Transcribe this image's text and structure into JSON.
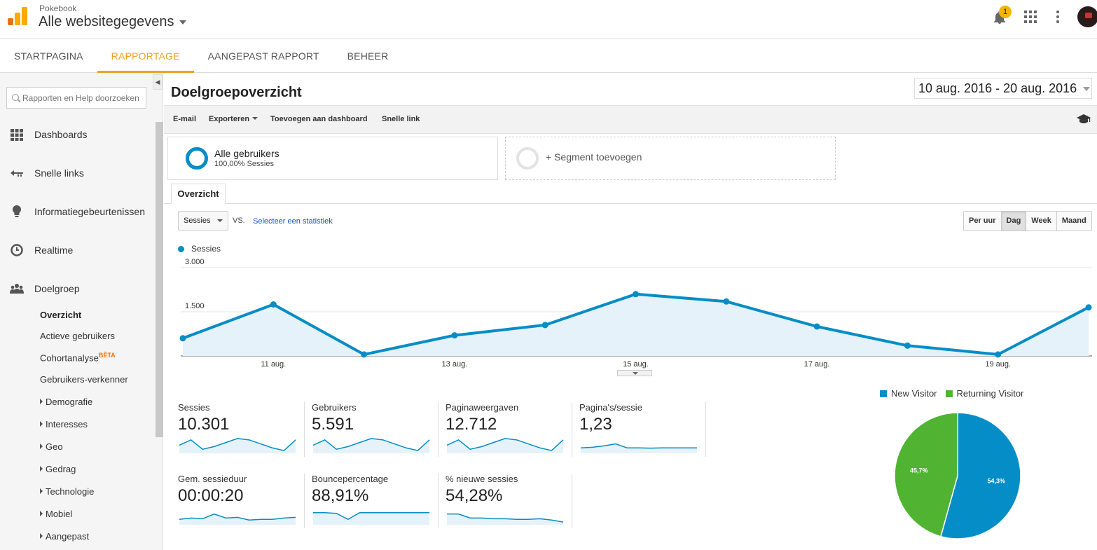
{
  "header": {
    "account": "Pokebook",
    "property": "Alle websitegegevens",
    "notifications_count": "1"
  },
  "nav": {
    "tabs": [
      {
        "label": "STARTPAGINA",
        "active": false
      },
      {
        "label": "RAPPORTAGE",
        "active": true
      },
      {
        "label": "AANGEPAST RAPPORT",
        "active": false
      },
      {
        "label": "BEHEER",
        "active": false
      }
    ]
  },
  "sidebar": {
    "search_placeholder": "Rapporten en Help doorzoeken",
    "items": [
      {
        "label": "Dashboards",
        "icon": "grid-icon"
      },
      {
        "label": "Snelle links",
        "icon": "arrow-left-icon"
      },
      {
        "label": "Informatiegebeurtenissen",
        "icon": "lightbulb-icon"
      },
      {
        "label": "Realtime",
        "icon": "clock-icon"
      },
      {
        "label": "Doelgroep",
        "icon": "people-icon"
      }
    ],
    "subitems": [
      {
        "label": "Overzicht",
        "active": true
      },
      {
        "label": "Actieve gebruikers"
      },
      {
        "label": "Cohortanalyse",
        "badge": "BÈTA"
      },
      {
        "label": "Gebruikers-verkenner"
      },
      {
        "label": "Demografie",
        "expandable": true
      },
      {
        "label": "Interesses",
        "expandable": true
      },
      {
        "label": "Geo",
        "expandable": true
      },
      {
        "label": "Gedrag",
        "expandable": true
      },
      {
        "label": "Technologie",
        "expandable": true
      },
      {
        "label": "Mobiel",
        "expandable": true
      },
      {
        "label": "Aangepast",
        "expandable": true
      }
    ]
  },
  "main": {
    "title": "Doelgroepoverzicht",
    "date_range": "10 aug. 2016 - 20 aug. 2016",
    "toolbar": {
      "email": "E-mail",
      "export": "Exporteren",
      "add_dashboard": "Toevoegen aan dashboard",
      "quick_link": "Snelle link"
    },
    "segment": {
      "title": "Alle gebruikers",
      "subtitle": "100,00% Sessies",
      "add": "+ Segment toevoegen"
    },
    "tab": "Overzicht",
    "metric_select": "Sessies",
    "vs": "VS.",
    "select_stat": "Selecteer een statistiek",
    "granularity": [
      {
        "label": "Per uur",
        "active": false
      },
      {
        "label": "Dag",
        "active": true
      },
      {
        "label": "Week",
        "active": false
      },
      {
        "label": "Maand",
        "active": false
      }
    ]
  },
  "chart_data": {
    "type": "area",
    "series": [
      {
        "name": "Sessies",
        "color": "#058dc7",
        "values": [
          600,
          1750,
          50,
          700,
          1050,
          2100,
          1850,
          1000,
          350,
          50,
          1650
        ]
      }
    ],
    "x": [
      "10 aug.",
      "11 aug.",
      "12 aug.",
      "13 aug.",
      "14 aug.",
      "15 aug.",
      "16 aug.",
      "17 aug.",
      "18 aug.",
      "19 aug.",
      "20 aug."
    ],
    "xtick_labels": [
      "11 aug.",
      "13 aug.",
      "15 aug.",
      "17 aug.",
      "19 aug."
    ],
    "ytick_labels": [
      "3.000",
      "1.500"
    ],
    "ylim": [
      0,
      3000
    ]
  },
  "metrics": [
    {
      "label": "Sessies",
      "value": "10.301",
      "spark": [
        5,
        9,
        2,
        4,
        7,
        10,
        9,
        6,
        3,
        1,
        9
      ]
    },
    {
      "label": "Gebruikers",
      "value": "5.591",
      "spark": [
        5,
        9,
        2,
        4,
        7,
        10,
        9,
        6,
        3,
        1,
        9
      ]
    },
    {
      "label": "Paginaweergaven",
      "value": "12.712",
      "spark": [
        5,
        9,
        2,
        4,
        7,
        10,
        9,
        6,
        3,
        1,
        9
      ]
    },
    {
      "label": "Pagina's/sessie",
      "value": "1,23",
      "spark": [
        3,
        3.5,
        4.5,
        6,
        3,
        3,
        2.8,
        3,
        3,
        3,
        3
      ]
    },
    {
      "label": "Gem. sessieduur",
      "value": "00:00:20",
      "spark": [
        3,
        4,
        3.5,
        7,
        4,
        4.5,
        2.5,
        3,
        3,
        4,
        4.5
      ]
    },
    {
      "label": "Bouncepercentage",
      "value": "88,91%",
      "spark": [
        8,
        8,
        7.5,
        3,
        8,
        8,
        8,
        8,
        8,
        8,
        8
      ]
    },
    {
      "label": "% nieuwe sessies",
      "value": "54,28%",
      "spark": [
        7,
        7,
        4,
        4,
        3.5,
        3.5,
        3,
        3,
        3.5,
        2.5,
        1
      ]
    }
  ],
  "pie": {
    "slices": [
      {
        "name": "New Visitor",
        "value": 54.3,
        "label": "54,3%",
        "color": "#058dc7"
      },
      {
        "name": "Returning Visitor",
        "value": 45.7,
        "label": "45,7%",
        "color": "#50b432"
      }
    ]
  }
}
